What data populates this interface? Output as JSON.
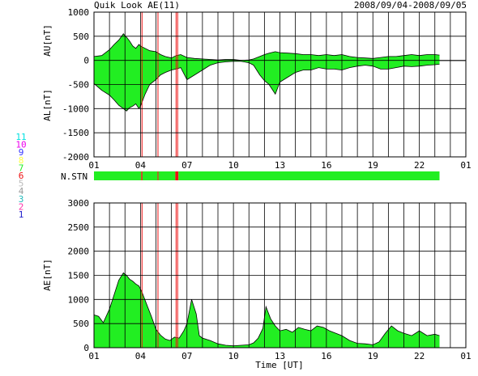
{
  "header": {
    "title": "Quik Look AE(11)",
    "date_range": "2008/09/04-2008/09/05"
  },
  "colors": {
    "fill": "#22ee22",
    "line": "#000000",
    "marker": "#ee1111",
    "station_bar": "#22ee22"
  },
  "station_legend": {
    "label": "N.STN",
    "numbers": [
      {
        "text": "11",
        "color": "#00e0e0"
      },
      {
        "text": "10",
        "color": "#ee00ee"
      },
      {
        "text": "9",
        "color": "#3333ff"
      },
      {
        "text": "8",
        "color": "#ffff44"
      },
      {
        "text": "7",
        "color": "#22ee22"
      },
      {
        "text": "6",
        "color": "#ee1111"
      },
      {
        "text": "5",
        "color": "#bbbbbb"
      },
      {
        "text": "4",
        "color": "#999999"
      },
      {
        "text": "3",
        "color": "#22bbbb"
      },
      {
        "text": "2",
        "color": "#ff33aa"
      },
      {
        "text": "1",
        "color": "#2222cc"
      }
    ],
    "segments": [
      {
        "start": 1,
        "end": 4.05,
        "color": "#22ee22"
      },
      {
        "start": 4.05,
        "end": 4.13,
        "color": "#ee1111"
      },
      {
        "start": 4.13,
        "end": 5.1,
        "color": "#22ee22"
      },
      {
        "start": 5.1,
        "end": 5.16,
        "color": "#ee1111"
      },
      {
        "start": 5.16,
        "end": 6.25,
        "color": "#22ee22"
      },
      {
        "start": 6.25,
        "end": 6.45,
        "color": "#ee1111"
      },
      {
        "start": 6.45,
        "end": 23.3,
        "color": "#22ee22"
      }
    ]
  },
  "chart_data": [
    {
      "type": "area",
      "ylabel_top": "AU[nT]",
      "ylabel_bottom": "AL[nT]",
      "ylim": [
        -2000,
        1000
      ],
      "yticks": [
        "1000",
        "500",
        "0",
        "-500",
        "-1000",
        "-1500",
        "-2000"
      ],
      "xlim": [
        1,
        25
      ],
      "xticks": [
        "01",
        "04",
        "07",
        "10",
        "13",
        "16",
        "19",
        "22",
        "01"
      ],
      "grid": true,
      "markers": [
        4.1,
        5.13,
        6.3,
        6.4
      ],
      "series": [
        {
          "x": [
            1.0,
            1.5,
            2.0,
            2.3,
            2.6,
            2.9,
            3.1,
            3.3,
            3.5,
            3.7,
            3.9,
            4.0,
            4.3,
            4.6,
            5.0,
            5.3,
            5.6,
            6.0,
            6.3,
            6.6,
            7.0,
            7.5,
            8.0,
            8.5,
            9.0,
            9.5,
            10.0,
            10.5,
            11.0,
            11.3,
            11.7,
            12.0,
            12.3,
            12.7,
            13.0,
            13.5,
            14.0,
            14.5,
            15.0,
            15.5,
            16.0,
            16.5,
            17.0,
            17.5,
            18.0,
            18.5,
            19.0,
            19.5,
            20.0,
            20.5,
            21.0,
            21.5,
            22.0,
            22.5,
            23.0,
            23.3
          ],
          "upper": [
            80,
            100,
            220,
            330,
            420,
            550,
            480,
            400,
            300,
            250,
            330,
            300,
            250,
            200,
            180,
            120,
            80,
            50,
            100,
            120,
            60,
            40,
            30,
            20,
            10,
            20,
            20,
            0,
            10,
            30,
            80,
            120,
            150,
            180,
            160,
            150,
            140,
            120,
            120,
            100,
            120,
            100,
            120,
            80,
            60,
            50,
            40,
            60,
            80,
            80,
            100,
            120,
            100,
            120,
            120,
            110
          ],
          "lower": [
            -480,
            -620,
            -720,
            -820,
            -930,
            -1000,
            -1050,
            -980,
            -950,
            -900,
            -1000,
            -950,
            -700,
            -500,
            -400,
            -300,
            -250,
            -200,
            -180,
            -150,
            -400,
            -300,
            -200,
            -100,
            -50,
            -30,
            -20,
            -20,
            -50,
            -100,
            -300,
            -420,
            -500,
            -700,
            -450,
            -350,
            -250,
            -200,
            -200,
            -150,
            -180,
            -180,
            -200,
            -150,
            -120,
            -100,
            -120,
            -180,
            -180,
            -150,
            -120,
            -130,
            -120,
            -100,
            -90,
            -80
          ]
        }
      ]
    },
    {
      "type": "area",
      "ylabel": "AE[nT]",
      "xlabel": "Time [UT]",
      "ylim": [
        0,
        3000
      ],
      "yticks": [
        "3000",
        "2500",
        "2000",
        "1500",
        "1000",
        "500",
        "0"
      ],
      "xlim": [
        1,
        25
      ],
      "xticks": [
        "01",
        "04",
        "07",
        "10",
        "13",
        "16",
        "19",
        "22",
        "01"
      ],
      "grid": true,
      "markers": [
        4.1,
        5.13,
        6.3,
        6.4
      ],
      "series": [
        {
          "x": [
            1.0,
            1.3,
            1.6,
            2.0,
            2.3,
            2.6,
            2.9,
            3.1,
            3.3,
            3.5,
            3.7,
            3.9,
            4.1,
            4.4,
            4.7,
            5.0,
            5.3,
            5.6,
            5.9,
            6.2,
            6.5,
            6.8,
            7.0,
            7.3,
            7.6,
            7.8,
            8.0,
            8.5,
            9.0,
            9.5,
            10.0,
            10.5,
            11.0,
            11.3,
            11.6,
            11.9,
            12.1,
            12.4,
            12.7,
            13.0,
            13.4,
            13.8,
            14.2,
            14.6,
            15.0,
            15.4,
            15.8,
            16.2,
            16.6,
            17.0,
            17.5,
            18.0,
            18.5,
            19.0,
            19.4,
            19.8,
            20.2,
            20.6,
            21.0,
            21.5,
            22.0,
            22.5,
            23.0,
            23.3
          ],
          "values": [
            680,
            650,
            520,
            800,
            1100,
            1400,
            1550,
            1500,
            1420,
            1380,
            1320,
            1280,
            1150,
            900,
            650,
            380,
            260,
            180,
            150,
            220,
            200,
            350,
            500,
            1000,
            700,
            250,
            200,
            150,
            80,
            50,
            40,
            50,
            60,
            100,
            200,
            400,
            850,
            600,
            450,
            350,
            380,
            320,
            420,
            380,
            350,
            450,
            420,
            350,
            300,
            250,
            150,
            90,
            80,
            60,
            120,
            300,
            450,
            350,
            300,
            250,
            350,
            250,
            280,
            250
          ]
        }
      ]
    }
  ]
}
